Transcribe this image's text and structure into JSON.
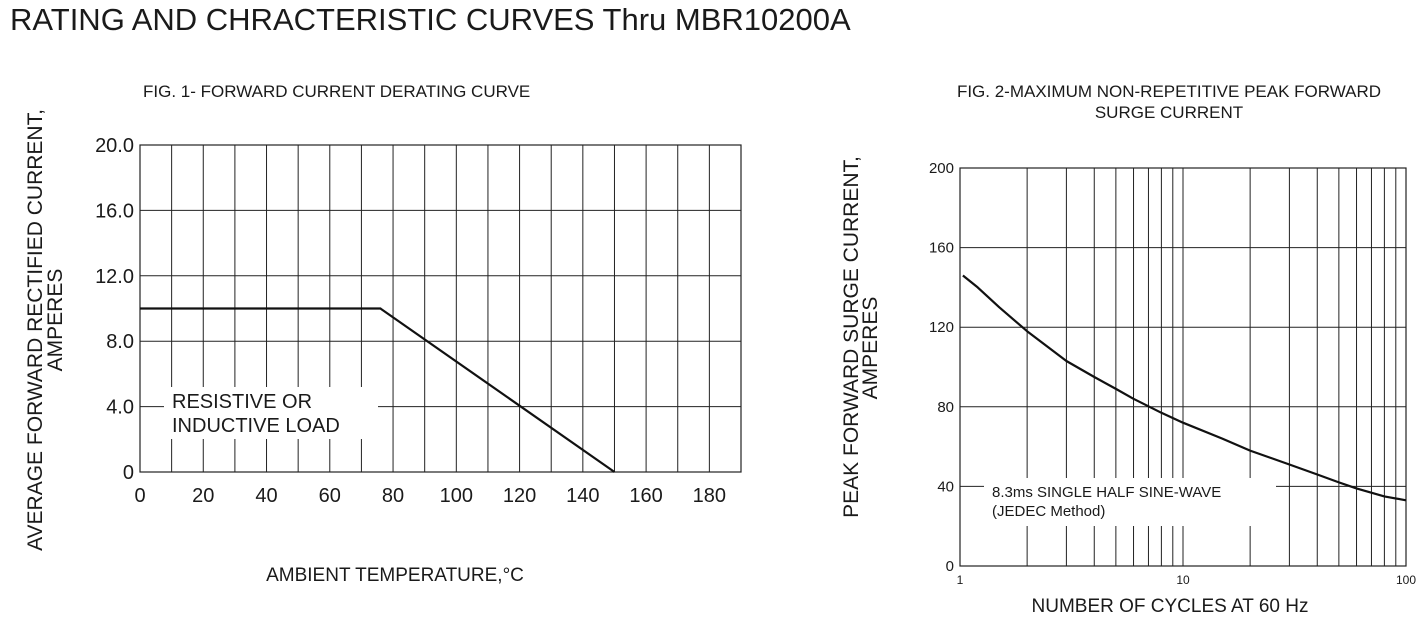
{
  "page_title": "RATING AND CHRACTERISTIC CURVES Thru MBR10200A",
  "chart_data": [
    {
      "type": "line",
      "title": "FIG. 1- FORWARD CURRENT DERATING CURVE",
      "xlabel": "AMBIENT TEMPERATURE,°C",
      "ylabel_lines": [
        "AVERAGE FORWARD RECTIFIED CURRENT,",
        "AMPERES"
      ],
      "xlim": [
        0,
        190
      ],
      "ylim": [
        0,
        20
      ],
      "x_ticks": [
        0,
        20,
        40,
        60,
        80,
        100,
        120,
        140,
        160,
        180
      ],
      "x_tick_labels": [
        "0",
        "20",
        "40",
        "60",
        "80",
        "100",
        "120",
        "140",
        "160",
        "180"
      ],
      "y_ticks": [
        0,
        4,
        8,
        12,
        16,
        20
      ],
      "y_tick_labels": [
        "0",
        "4.0",
        "8.0",
        "12.0",
        "16.0",
        "20.0"
      ],
      "grid": true,
      "x_grid_step": 10,
      "series": [
        {
          "x": [
            0,
            76,
            150
          ],
          "y": [
            10,
            10,
            0
          ]
        }
      ],
      "annotation_lines": [
        "RESISTIVE OR",
        "INDUCTIVE LOAD"
      ]
    },
    {
      "type": "line",
      "title_lines": [
        "FIG. 2-MAXIMUM NON-REPETITIVE PEAK FORWARD",
        "SURGE CURRENT"
      ],
      "xlabel": "NUMBER OF CYCLES AT 60 Hz",
      "ylabel_lines": [
        "PEAK  FORWARD SURGE CURRENT,",
        "AMPERES"
      ],
      "x_scale": "log",
      "xlim": [
        1,
        100
      ],
      "ylim": [
        0,
        200
      ],
      "x_ticks": [
        1,
        10,
        100
      ],
      "x_tick_labels": [
        "1",
        "10",
        "100"
      ],
      "y_ticks": [
        0,
        40,
        80,
        120,
        160,
        200
      ],
      "y_tick_labels": [
        "0",
        "40",
        "80",
        "120",
        "160",
        "200"
      ],
      "grid": true,
      "series": [
        {
          "x": [
            1.03,
            1.2,
            1.5,
            2,
            3,
            4,
            5,
            6,
            8,
            10,
            15,
            20,
            30,
            40,
            50,
            60,
            80,
            100
          ],
          "y": [
            146,
            140,
            130,
            118,
            103,
            95,
            89,
            84,
            77,
            72,
            64,
            58,
            51,
            46,
            42,
            39,
            35,
            33
          ]
        }
      ],
      "annotation_lines": [
        "8.3ms SINGLE HALF SINE-WAVE",
        "(JEDEC Method)"
      ]
    }
  ]
}
